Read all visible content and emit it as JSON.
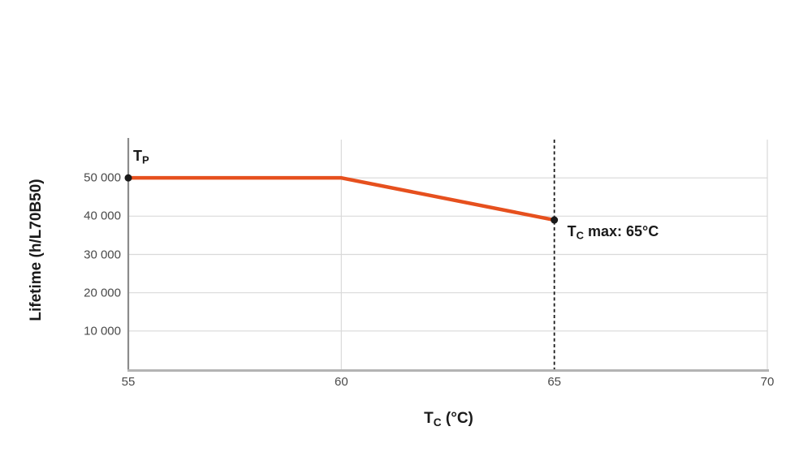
{
  "chart_data": {
    "type": "line",
    "title": "",
    "xlabel": {
      "prefix": "T",
      "sub": "C",
      "suffix": " (°C)"
    },
    "ylabel": "Lifetime (h/L70B50)",
    "xlim": [
      55,
      70
    ],
    "ylim": [
      0,
      60000
    ],
    "xticks": [
      55,
      60,
      65,
      70
    ],
    "xtick_labels": [
      "55",
      "60",
      "65",
      "70"
    ],
    "yticks": [
      10000,
      20000,
      30000,
      40000,
      50000
    ],
    "ytick_labels": [
      "10 000",
      "20 000",
      "30 000",
      "40 000",
      "50 000"
    ],
    "grid": true,
    "legend": "none",
    "series": [
      {
        "name": "lifetime-vs-tc",
        "color": "#e6501e",
        "points": [
          [
            55,
            50000
          ],
          [
            60,
            50000
          ],
          [
            65,
            39000
          ]
        ]
      }
    ],
    "markers": [
      [
        55,
        50000
      ],
      [
        65,
        39000
      ]
    ],
    "annotations": {
      "tp": {
        "prefix": "T",
        "sub": "P",
        "x": 55,
        "y": 50000
      },
      "tc_max": {
        "prefix": "T",
        "sub": "C",
        "suffix": " max: 65°C",
        "x": 65,
        "y": 39000
      },
      "vline_x": 65
    }
  },
  "colors": {
    "line": "#e6501e",
    "marker": "#1a1a1a",
    "dashed_line": "#1a1a1a",
    "grid": "#d9d9d9",
    "y_axis": "#8c8c8c",
    "x_axis": "#b3b3b3",
    "tick_text": "#4a4a4a",
    "title_text": "#1a1a1a",
    "background": "#ffffff"
  }
}
